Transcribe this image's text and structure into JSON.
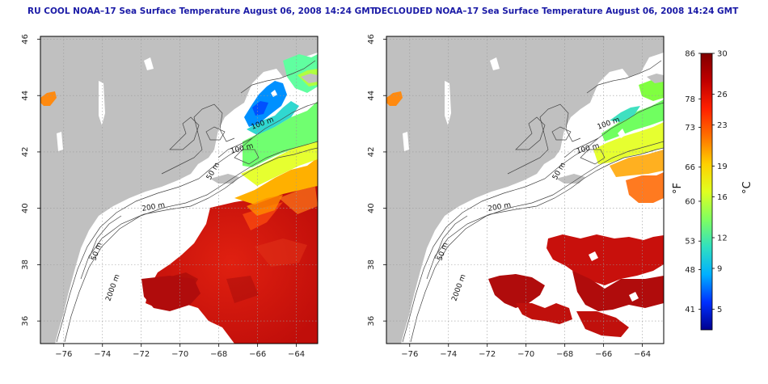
{
  "panels": [
    {
      "title": "RU COOL NOAA–17 Sea Surface Temperature August 06, 2008 14:24 GMT",
      "contour_labels": [
        "100 m",
        "100 m",
        "50 m",
        "200 m",
        "50 m",
        "2000 m"
      ],
      "data_coverage": "full"
    },
    {
      "title": "DECLOUDED NOAA–17 Sea Surface Temperature August 06, 2008 14:24 GMT",
      "contour_labels": [
        "100 m",
        "100 m",
        "50 m",
        "200 m",
        "50 m",
        "2000 m"
      ],
      "data_coverage": "declouded"
    }
  ],
  "axes": {
    "x_ticks": [
      "−76",
      "−74",
      "−72",
      "−70",
      "−68",
      "−66",
      "−64"
    ],
    "y_ticks": [
      "46",
      "44",
      "42",
      "40",
      "38",
      "36"
    ],
    "xlim": [
      -77.2,
      -62.9
    ],
    "ylim": [
      35.2,
      46.1
    ],
    "grid": "dotted"
  },
  "colorbar": {
    "unit_f": "°F",
    "unit_c": "°C",
    "ticks_f": [
      "86",
      "78",
      "73",
      "66",
      "60",
      "53",
      "48",
      "41"
    ],
    "ticks_c": [
      "30",
      "26",
      "23",
      "19",
      "16",
      "12",
      "9",
      "5"
    ],
    "range_c": [
      3,
      30
    ],
    "colors": [
      "#00008f",
      "#0030ff",
      "#00b0ff",
      "#30e0c0",
      "#80ff60",
      "#e0ff20",
      "#ffd000",
      "#ff7000",
      "#ff2000",
      "#c00000",
      "#800000"
    ]
  },
  "colors": {
    "land": "#c0c0c0",
    "title": "#1a1aa6",
    "contour": "#444444"
  }
}
